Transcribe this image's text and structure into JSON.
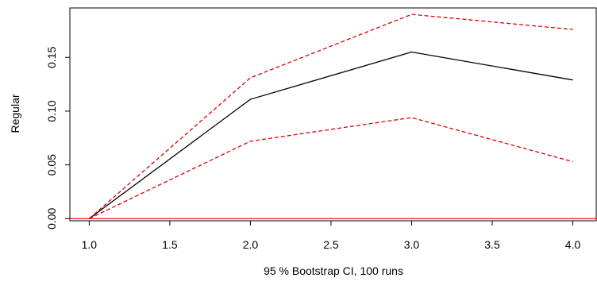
{
  "chart_data": {
    "type": "line",
    "title": "",
    "xlabel": "95 % Bootstrap CI,  100 runs",
    "ylabel": "Regular",
    "xlim": [
      0.88,
      4.15
    ],
    "ylim": [
      -0.002,
      0.196
    ],
    "x_ticks": [
      1.0,
      1.5,
      2.0,
      2.5,
      3.0,
      3.5,
      4.0
    ],
    "x_tick_labels": [
      "1.0",
      "1.5",
      "2.0",
      "2.5",
      "3.0",
      "3.5",
      "4.0"
    ],
    "y_ticks": [
      0.0,
      0.05,
      0.1,
      0.15
    ],
    "y_tick_labels": [
      "0.00",
      "0.05",
      "0.10",
      "0.15"
    ],
    "grid": false,
    "legend": "none",
    "x": [
      1.0,
      2.0,
      3.0,
      4.0
    ],
    "series": [
      {
        "role": "estimate",
        "color": "#000000",
        "dash": "solid",
        "values": [
          0.0,
          0.111,
          0.155,
          0.129
        ]
      },
      {
        "role": "upper",
        "color": "#dd0000",
        "dash": "dashed",
        "values": [
          0.0,
          0.131,
          0.19,
          0.176
        ]
      },
      {
        "role": "lower",
        "color": "#dd0000",
        "dash": "dashed",
        "values": [
          0.0,
          0.072,
          0.094,
          0.053
        ]
      }
    ],
    "reference_lines": [
      {
        "axis": "y",
        "value": 0.0,
        "color": "#ff0000"
      }
    ]
  }
}
